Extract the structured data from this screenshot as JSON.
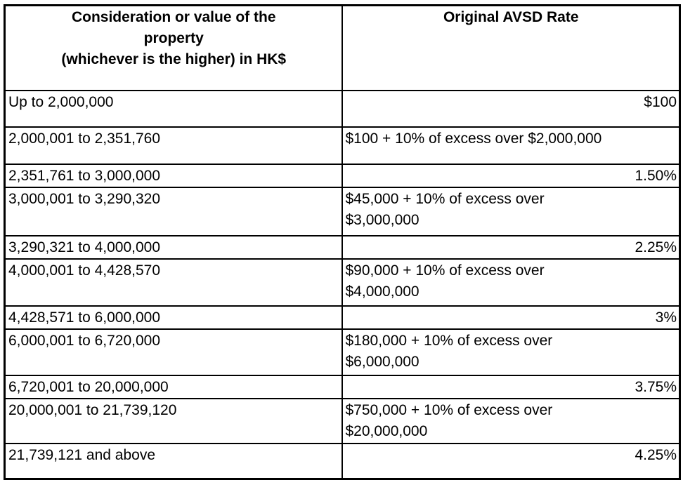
{
  "page": {
    "background_color": "#ffffff",
    "border_color": "#000000",
    "text_color": "#000000"
  },
  "table": {
    "columns": [
      {
        "label": "Consideration or value of the\nproperty\n(whichever is the higher) in HK$"
      },
      {
        "label": "Original AVSD Rate"
      }
    ],
    "rows": [
      {
        "range": "Up to 2,000,000",
        "rate": "$100",
        "rate_align": "right"
      },
      {
        "range": "2,000,001 to 2,351,760",
        "rate": "$100 + 10% of excess over $2,000,000",
        "rate_align": "left"
      },
      {
        "range": "2,351,761 to 3,000,000",
        "rate": "1.50%",
        "rate_align": "right"
      },
      {
        "range": "3,000,001 to 3,290,320",
        "rate": "$45,000 + 10% of excess over\n$3,000,000",
        "rate_align": "left"
      },
      {
        "range": "3,290,321 to 4,000,000",
        "rate": "2.25%",
        "rate_align": "right"
      },
      {
        "range": "4,000,001 to 4,428,570",
        "rate": "$90,000 + 10% of excess over\n$4,000,000",
        "rate_align": "left"
      },
      {
        "range": "4,428,571 to 6,000,000",
        "rate": "3%",
        "rate_align": "right"
      },
      {
        "range": "6,000,001 to 6,720,000",
        "rate": "$180,000 + 10% of excess over\n$6,000,000",
        "rate_align": "left"
      },
      {
        "range": "6,720,001 to 20,000,000",
        "rate": "3.75%",
        "rate_align": "right"
      },
      {
        "range": "20,000,001 to 21,739,120",
        "rate": "$750,000 + 10% of excess over\n$20,000,000",
        "rate_align": "left"
      },
      {
        "range": "21,739,121 and above",
        "rate": "4.25%",
        "rate_align": "right"
      }
    ]
  }
}
